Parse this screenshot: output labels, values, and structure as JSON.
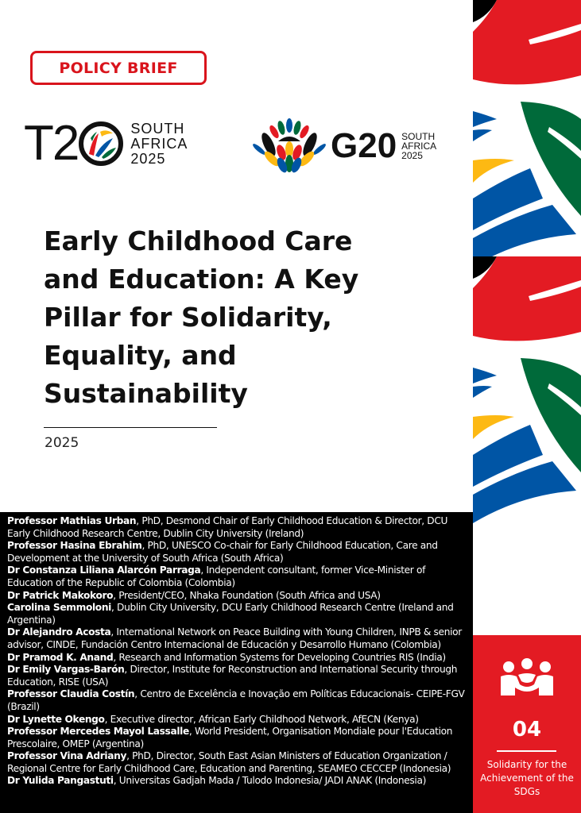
{
  "badge": {
    "label": "POLICY BRIEF",
    "color": "#d9141c"
  },
  "logos": {
    "t20": {
      "mark": "T20",
      "text_lines": [
        "SOUTH",
        "AFRICA",
        "2025"
      ]
    },
    "g20": {
      "mark": "G20",
      "text_lines": [
        "SOUTH",
        "AFRICA",
        "2025"
      ]
    }
  },
  "title": "Early Childhood Care and Education: A Key Pillar for Solidarity, Equality, and Sustainability",
  "year": "2025",
  "authors": [
    {
      "name": "Professor Mathias Urban",
      "affiliation": ", PhD, Desmond Chair of Early Childhood Education & Director, DCU Early Childhood Research Centre, Dublin City University (Ireland)"
    },
    {
      "name": "Professor Hasina Ebrahim",
      "affiliation": ", PhD, UNESCO Co-chair for Early Childhood Education, Care and Development at the University of South Africa (South Africa)"
    },
    {
      "name": "Dr Constanza Liliana Alarcón Parraga",
      "affiliation": ", Independent consultant, former Vice-Minister of Education of the Republic of Colombia (Colombia)"
    },
    {
      "name": "Dr Patrick Makokoro",
      "affiliation": ", President/CEO, Nhaka Foundation (South Africa and USA)"
    },
    {
      "name": "Carolina Semmoloni",
      "affiliation": ", Dublin City University, DCU Early Childhood Research Centre (Ireland and Argentina)"
    },
    {
      "name": "Dr Alejandro Acosta",
      "affiliation": ", International Network on Peace Building with Young Children, INPB & senior advisor, CINDE, Fundación Centro Internacional de Educación y Desarrollo Humano (Colombia)"
    },
    {
      "name": "Dr Pramod K. Anand",
      "affiliation": ", Research and Information Systems for Developing Countries RIS (India)"
    },
    {
      "name": "Dr Emily Vargas-Barón",
      "affiliation": ", Director, Institute for Reconstruction and International Security through Education, RISE (USA)"
    },
    {
      "name": "Professor Claudia Costín",
      "affiliation": ", Centro de Excelência e Inovação em Políticas Educacionais- CEIPE-FGV (Brazil)"
    },
    {
      "name": "Dr Lynette Okengo",
      "affiliation": ", Executive director, African Early Childhood Network, AfECN (Kenya)"
    },
    {
      "name": "Professor Mercedes Mayol Lassalle",
      "affiliation": ", World President, Organisation Mondiale pour l'Education Prescolaire, OMEP (Argentina)"
    },
    {
      "name": "Professor Vina Adriany",
      "affiliation": ", PhD, Director, South East Asian Ministers of Education Organization / Regional Centre for Early Childhood Care, Education and Parenting, SEAMEO CECCEP (Indonesia)"
    },
    {
      "name": "Dr Yulida Pangastuti",
      "affiliation": ", Universitas Gadjah Mada / Tulodo Indonesia/ JADI ANAK (Indonesia)"
    }
  ],
  "sdg_panel": {
    "icon": "people-solidarity-icon",
    "number": "04",
    "label": "Solidarity for the Achievement of the SDGs",
    "color": "#e31b23"
  },
  "stripe_colors": [
    "#e31b23",
    "#006a3a",
    "#0055a5",
    "#fdb913",
    "#000000"
  ]
}
